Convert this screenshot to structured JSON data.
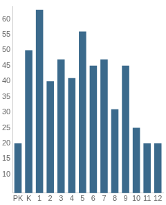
{
  "chart_data": {
    "type": "bar",
    "categories": [
      "PK",
      "K",
      "1",
      "2",
      "3",
      "4",
      "5",
      "6",
      "7",
      "8",
      "9",
      "10",
      "11",
      "12"
    ],
    "values": [
      20,
      50,
      63,
      40,
      47,
      41,
      56,
      45,
      47,
      31,
      45,
      25,
      20,
      20
    ],
    "color": "#3b6a8c",
    "ylim": [
      4,
      64
    ],
    "yticks": [
      10,
      15,
      20,
      25,
      30,
      35,
      40,
      45,
      50,
      55,
      60
    ],
    "grid": false
  }
}
